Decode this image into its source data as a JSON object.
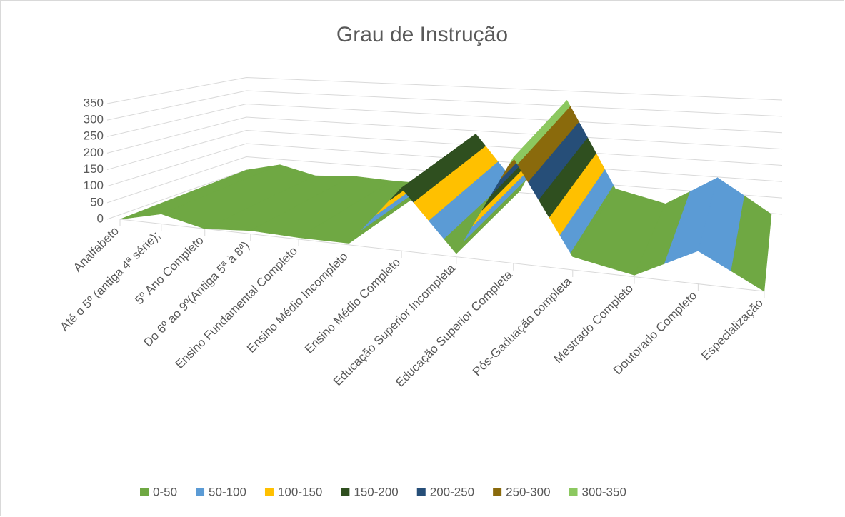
{
  "chart_data": {
    "type": "surface",
    "title": "Grau de Instrução",
    "categories": [
      "Analfabeto",
      "Até o 5º (antiga 4ª série);",
      "5º Ano Completo",
      "Do 6º ao 9º(Antiga 5ª à 8ª)",
      "Ensino Fundamental Completo",
      "Ensino Médio Incompleto",
      "Ensino Médio Completo",
      "Educação Superior Incompleta",
      "Educação Superior Completa",
      "Pós-Gaduação completa",
      "Mestrado Completo",
      "Doutorado Completo",
      "Especialização"
    ],
    "values": [
      0,
      30,
      0,
      10,
      5,
      5,
      190,
      10,
      320,
      40,
      5,
      100,
      0
    ],
    "ylim": [
      0,
      350
    ],
    "yticks": [
      0,
      50,
      100,
      150,
      200,
      250,
      300,
      350
    ],
    "grid": true,
    "legend_position": "bottom",
    "legend": [
      {
        "name": "0-50",
        "color": "#6fa843"
      },
      {
        "name": "50-100",
        "color": "#5b9bd5"
      },
      {
        "name": "100-150",
        "color": "#ffc000"
      },
      {
        "name": "150-200",
        "color": "#2f4f1f"
      },
      {
        "name": "200-250",
        "color": "#264e78"
      },
      {
        "name": "250-300",
        "color": "#8a6a0c"
      },
      {
        "name": "300-350",
        "color": "#8cc860"
      }
    ]
  }
}
